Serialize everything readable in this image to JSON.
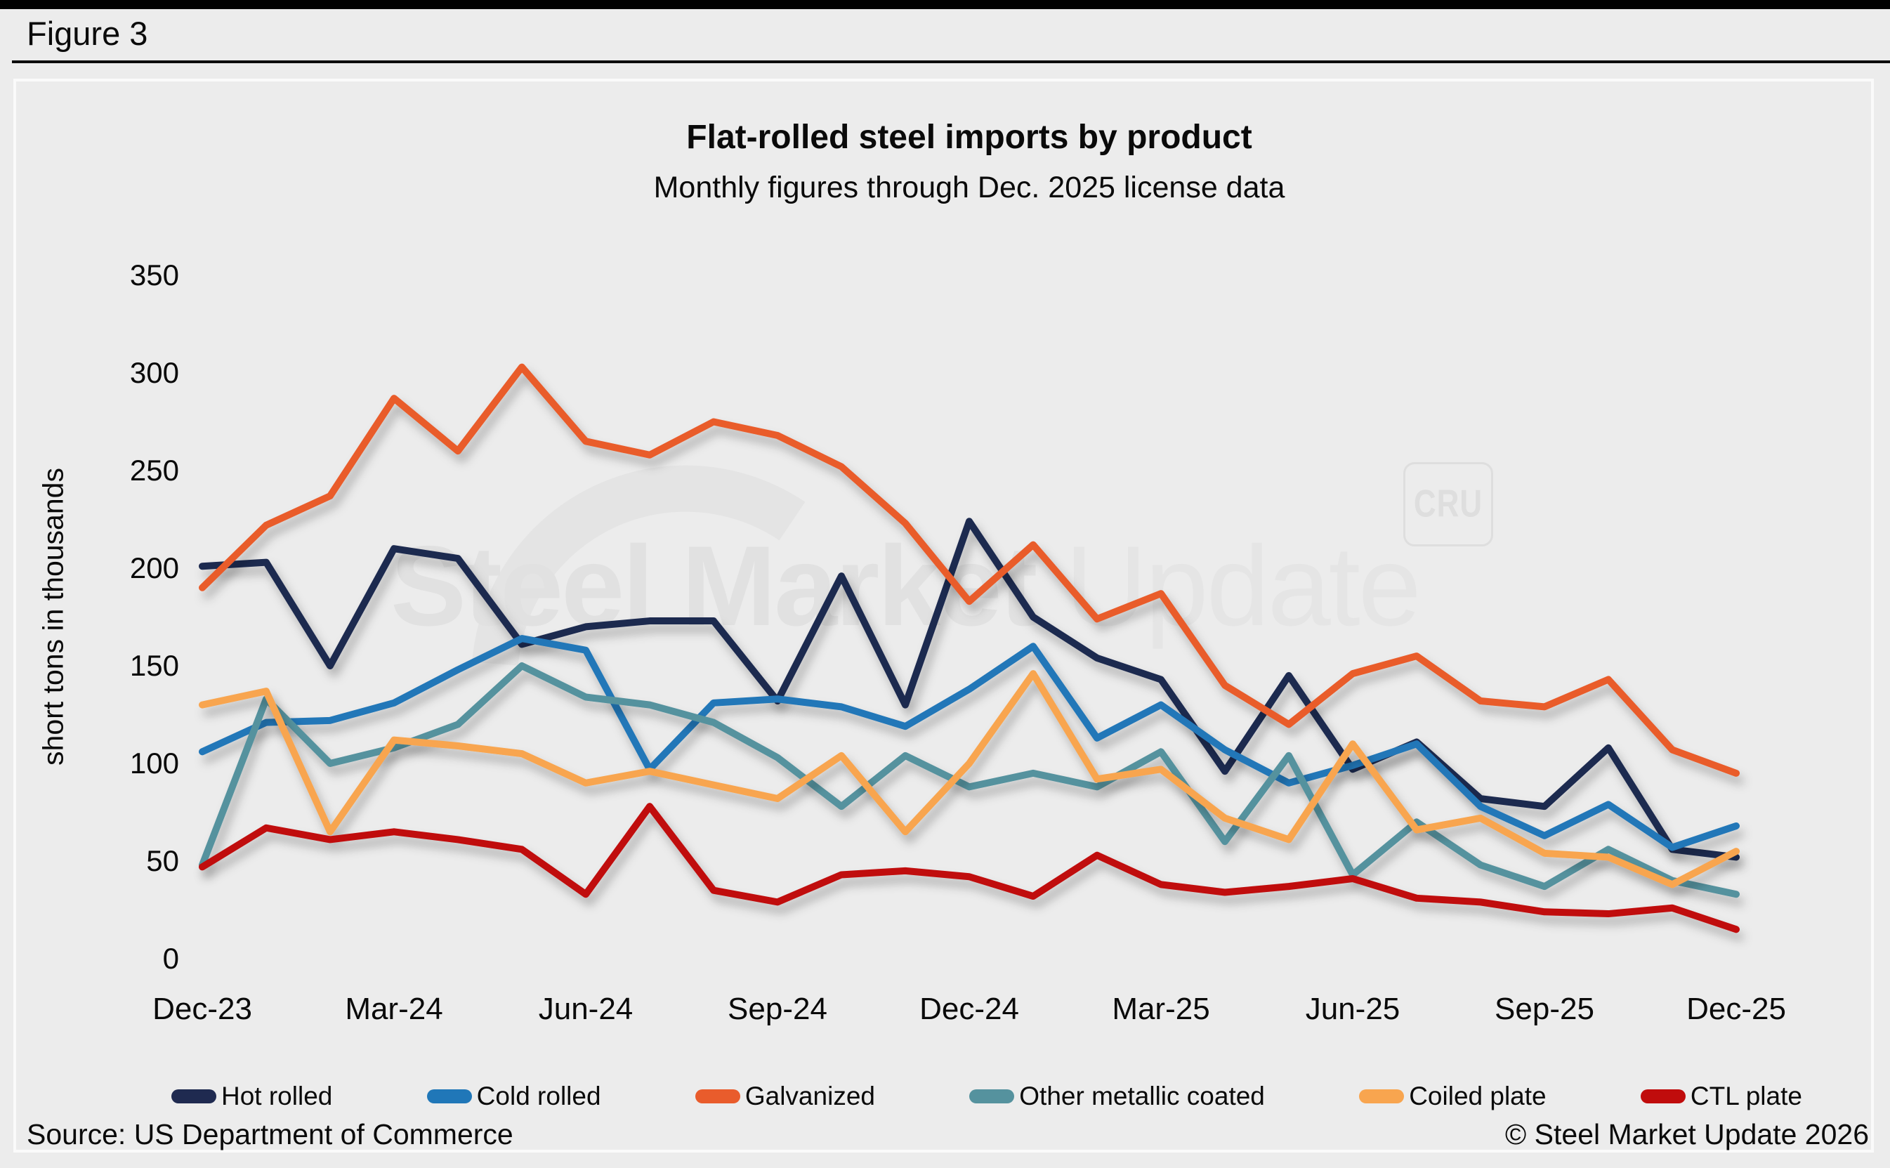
{
  "figure_label": "Figure 3",
  "watermark": {
    "text_bold": "Steel Market",
    "text_light": "Update",
    "cru": "CRU"
  },
  "footer": {
    "source": "Source: US Department of Commerce",
    "copyright": "© Steel Market Update 2026"
  },
  "chart_data": {
    "type": "line",
    "title": "Flat-rolled steel imports by product",
    "subtitle": "Monthly figures through Dec. 2025 license data",
    "ylabel": "short tons in thousands",
    "ylim": [
      0,
      350
    ],
    "ytick_interval": 50,
    "ytick_labels": [
      "0",
      "50",
      "100",
      "150",
      "200",
      "250",
      "300",
      "350"
    ],
    "grid": false,
    "legend_position": "bottom",
    "x_months": [
      "Dec-23",
      "Jan-24",
      "Feb-24",
      "Mar-24",
      "Apr-24",
      "May-24",
      "Jun-24",
      "Jul-24",
      "Aug-24",
      "Sep-24",
      "Oct-24",
      "Nov-24",
      "Dec-24",
      "Jan-25",
      "Feb-25",
      "Mar-25",
      "Apr-25",
      "May-25",
      "Jun-25",
      "Jul-25",
      "Aug-25",
      "Sep-25",
      "Oct-25",
      "Nov-25",
      "Dec-25"
    ],
    "x_tick_labels": [
      "Dec-23",
      "Mar-24",
      "Jun-24",
      "Sep-24",
      "Dec-24",
      "Mar-25",
      "Jun-25",
      "Sep-25",
      "Dec-25"
    ],
    "x_tick_indices": [
      0,
      3,
      6,
      9,
      12,
      15,
      18,
      21,
      24
    ],
    "series": [
      {
        "name": "Hot rolled",
        "color": "#1f2a50",
        "values": [
          201,
          203,
          150,
          210,
          205,
          161,
          170,
          173,
          173,
          132,
          196,
          130,
          224,
          175,
          154,
          143,
          96,
          145,
          97,
          111,
          82,
          78,
          108,
          56,
          52
        ]
      },
      {
        "name": "Cold rolled",
        "color": "#2077b8",
        "values": [
          106,
          121,
          122,
          131,
          148,
          164,
          158,
          97,
          131,
          133,
          129,
          119,
          138,
          160,
          113,
          130,
          107,
          90,
          99,
          110,
          78,
          63,
          79,
          57,
          68
        ]
      },
      {
        "name": "Galvanized",
        "color": "#e95c2c",
        "values": [
          190,
          222,
          237,
          287,
          260,
          303,
          265,
          258,
          275,
          268,
          252,
          223,
          183,
          212,
          174,
          187,
          140,
          120,
          146,
          155,
          132,
          129,
          143,
          107,
          95
        ]
      },
      {
        "name": "Other metallic coated",
        "color": "#55929e",
        "values": [
          48,
          133,
          100,
          108,
          120,
          150,
          134,
          130,
          121,
          103,
          78,
          104,
          88,
          95,
          88,
          106,
          60,
          104,
          43,
          70,
          48,
          37,
          56,
          40,
          33
        ]
      },
      {
        "name": "Coiled plate",
        "color": "#f8a54f",
        "values": [
          130,
          137,
          65,
          112,
          109,
          105,
          90,
          96,
          89,
          82,
          104,
          65,
          100,
          146,
          92,
          97,
          72,
          61,
          110,
          66,
          72,
          54,
          52,
          38,
          55
        ]
      },
      {
        "name": "CTL plate",
        "color": "#c00c0c",
        "values": [
          47,
          67,
          61,
          65,
          61,
          56,
          33,
          78,
          35,
          29,
          43,
          45,
          42,
          32,
          53,
          38,
          34,
          37,
          41,
          31,
          29,
          24,
          23,
          26,
          15
        ]
      }
    ]
  }
}
